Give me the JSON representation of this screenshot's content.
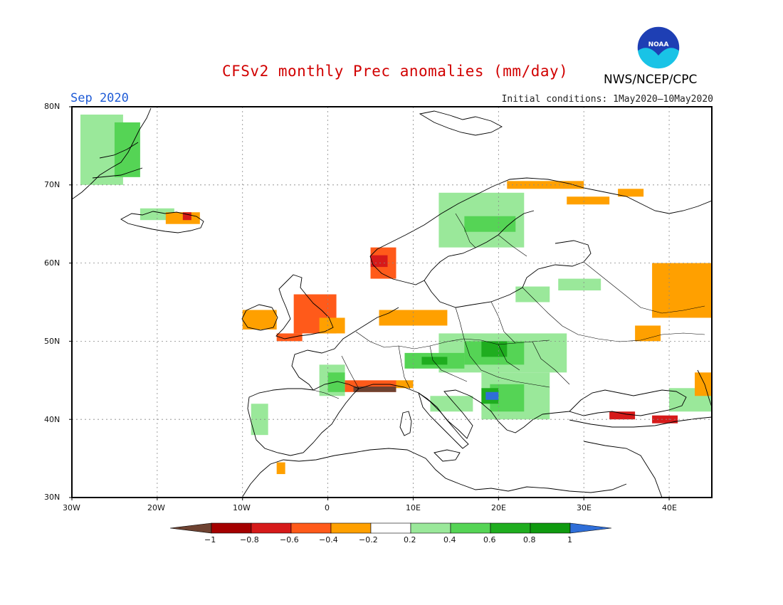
{
  "header": {
    "title": "CFSv2 monthly Prec anomalies (mm/day)",
    "month": "Sep 2020",
    "initial_conditions": "Initial conditions: 1May2020–10May2020",
    "agency": "NWS/NCEP/CPC",
    "logo_text": "NOAA"
  },
  "axes": {
    "lat_labels": [
      "80N",
      "70N",
      "60N",
      "50N",
      "40N",
      "30N"
    ],
    "lon_labels": [
      "30W",
      "20W",
      "10W",
      "0",
      "10E",
      "20E",
      "30E",
      "40E"
    ],
    "lat_range": [
      30,
      80
    ],
    "lon_range": [
      -30,
      45
    ]
  },
  "colorbar": {
    "tick_labels": [
      "−1",
      "−0.8",
      "−0.6",
      "−0.4",
      "−0.2",
      "0.2",
      "0.4",
      "0.6",
      "0.8",
      "1"
    ],
    "colors": [
      "#6e4231",
      "#a40000",
      "#d61a1a",
      "#ff5a1a",
      "#ffa000",
      "#ffffff",
      "#9ae89a",
      "#55d455",
      "#1fad1f",
      "#0f9a0f",
      "#2f6ed8"
    ]
  },
  "anomalies": [
    {
      "lon_min": -29,
      "lon_max": -24,
      "lat_min": 70,
      "lat_max": 79,
      "level": "0.2"
    },
    {
      "lon_min": -25,
      "lon_max": -22,
      "lat_min": 71,
      "lat_max": 78,
      "level": "0.4"
    },
    {
      "lon_min": -22,
      "lon_max": -18,
      "lat_min": 65.5,
      "lat_max": 67,
      "level": "0.2"
    },
    {
      "lon_min": -19,
      "lon_max": -15,
      "lat_min": 65,
      "lat_max": 66.5,
      "level": "-0.2"
    },
    {
      "lon_min": -17,
      "lon_max": -16,
      "lat_min": 65.5,
      "lat_max": 66.5,
      "level": "-0.6"
    },
    {
      "lon_min": -10,
      "lon_max": -6,
      "lat_min": 51.5,
      "lat_max": 54,
      "level": "-0.2"
    },
    {
      "lon_min": -4,
      "lon_max": 1,
      "lat_min": 51,
      "lat_max": 56,
      "level": "-0.4"
    },
    {
      "lon_min": -6,
      "lon_max": -3,
      "lat_min": 50,
      "lat_max": 51,
      "level": "-0.4"
    },
    {
      "lon_min": -1,
      "lon_max": 2,
      "lat_min": 51,
      "lat_max": 53,
      "level": "-0.2"
    },
    {
      "lon_min": 5,
      "lon_max": 8,
      "lat_min": 58,
      "lat_max": 62,
      "level": "-0.4"
    },
    {
      "lon_min": 5,
      "lon_max": 7,
      "lat_min": 59.5,
      "lat_max": 61,
      "level": "-0.6"
    },
    {
      "lon_min": 6,
      "lon_max": 14,
      "lat_min": 52,
      "lat_max": 54,
      "level": "-0.2"
    },
    {
      "lon_min": 13,
      "lon_max": 23,
      "lat_min": 62,
      "lat_max": 69,
      "level": "0.2"
    },
    {
      "lon_min": 16,
      "lon_max": 22,
      "lat_min": 64,
      "lat_max": 66,
      "level": "0.4"
    },
    {
      "lon_min": 21,
      "lon_max": 30,
      "lat_min": 69.5,
      "lat_max": 70.5,
      "level": "-0.2"
    },
    {
      "lon_min": 28,
      "lon_max": 33,
      "lat_min": 67.5,
      "lat_max": 68.5,
      "level": "-0.2"
    },
    {
      "lon_min": 34,
      "lon_max": 37,
      "lat_min": 68.5,
      "lat_max": 69.5,
      "level": "-0.2"
    },
    {
      "lon_min": 38,
      "lon_max": 45,
      "lat_min": 53,
      "lat_max": 60,
      "level": "-0.2"
    },
    {
      "lon_min": 36,
      "lon_max": 39,
      "lat_min": 50,
      "lat_max": 52,
      "level": "-0.2"
    },
    {
      "lon_min": 13,
      "lon_max": 28,
      "lat_min": 46,
      "lat_max": 51,
      "level": "0.2"
    },
    {
      "lon_min": 16,
      "lon_max": 23,
      "lat_min": 47,
      "lat_max": 50,
      "level": "0.4"
    },
    {
      "lon_min": 18,
      "lon_max": 21,
      "lat_min": 48,
      "lat_max": 50,
      "level": "0.6"
    },
    {
      "lon_min": 9,
      "lon_max": 16,
      "lat_min": 46.5,
      "lat_max": 48.5,
      "level": "0.4"
    },
    {
      "lon_min": 11,
      "lon_max": 14,
      "lat_min": 47,
      "lat_max": 48,
      "level": "0.6"
    },
    {
      "lon_min": 18,
      "lon_max": 26,
      "lat_min": 40,
      "lat_max": 46,
      "level": "0.2"
    },
    {
      "lon_min": 19,
      "lon_max": 23,
      "lat_min": 41,
      "lat_max": 44.5,
      "level": "0.4"
    },
    {
      "lon_min": 18,
      "lon_max": 20,
      "lat_min": 42,
      "lat_max": 44,
      "level": "0.6"
    },
    {
      "lon_min": 18.5,
      "lon_max": 20,
      "lat_min": 42.5,
      "lat_max": 43.5,
      "level": "1"
    },
    {
      "lon_min": 12,
      "lon_max": 17,
      "lat_min": 41,
      "lat_max": 43,
      "level": "0.2"
    },
    {
      "lon_min": -1,
      "lon_max": 2,
      "lat_min": 43,
      "lat_max": 47,
      "level": "0.2"
    },
    {
      "lon_min": 0,
      "lon_max": 2,
      "lat_min": 43.5,
      "lat_max": 46,
      "level": "0.4"
    },
    {
      "lon_min": 2,
      "lon_max": 8,
      "lat_min": 43.5,
      "lat_max": 45,
      "level": "-0.4"
    },
    {
      "lon_min": 3,
      "lon_max": 8,
      "lat_min": 43.5,
      "lat_max": 44.2,
      "level": "-1"
    },
    {
      "lon_min": 8,
      "lon_max": 10,
      "lat_min": 44,
      "lat_max": 45,
      "level": "-0.2"
    },
    {
      "lon_min": -9,
      "lon_max": -7,
      "lat_min": 38,
      "lat_max": 42,
      "level": "0.2"
    },
    {
      "lon_min": -6,
      "lon_max": -5,
      "lat_min": 33,
      "lat_max": 34.5,
      "level": "-0.2"
    },
    {
      "lon_min": 33,
      "lon_max": 36,
      "lat_min": 40,
      "lat_max": 41,
      "level": "-0.6"
    },
    {
      "lon_min": 38,
      "lon_max": 41,
      "lat_min": 39.5,
      "lat_max": 40.5,
      "level": "-0.6"
    },
    {
      "lon_min": 40,
      "lon_max": 45,
      "lat_min": 41,
      "lat_max": 44,
      "level": "0.2"
    },
    {
      "lon_min": 43,
      "lon_max": 45,
      "lat_min": 43,
      "lat_max": 46,
      "level": "-0.2"
    },
    {
      "lon_min": 27,
      "lon_max": 32,
      "lat_min": 56.5,
      "lat_max": 58,
      "level": "0.2"
    },
    {
      "lon_min": 22,
      "lon_max": 26,
      "lat_min": 55,
      "lat_max": 57,
      "level": "0.2"
    }
  ]
}
